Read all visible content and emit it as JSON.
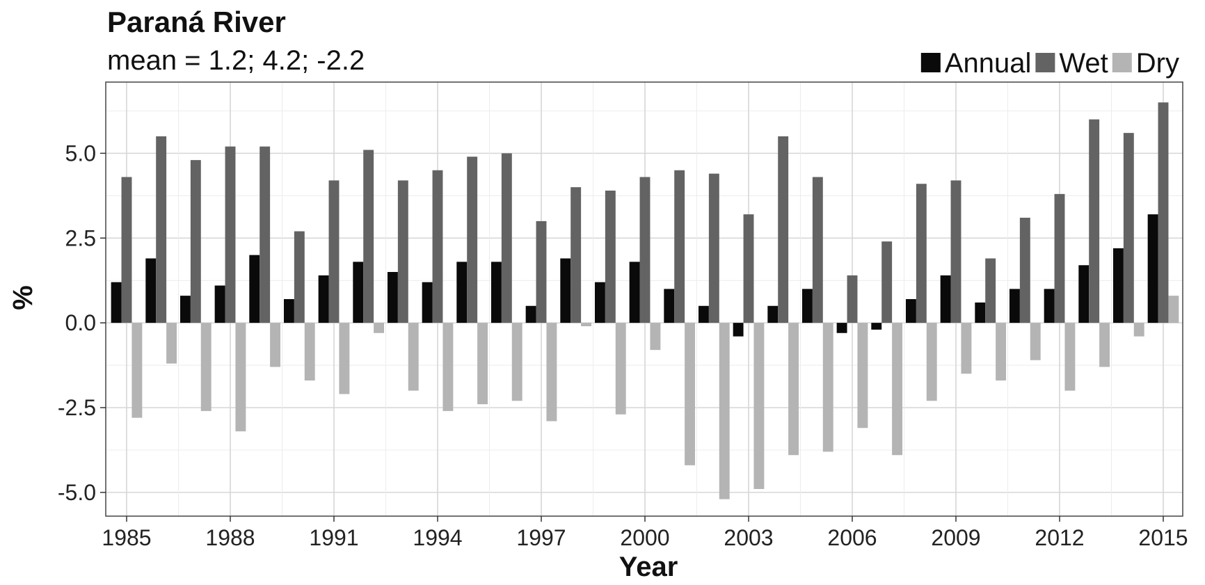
{
  "chart_data": {
    "type": "bar",
    "title": "Paraná River",
    "subtitle": "mean = 1.2; 4.2; -2.2",
    "xlabel": "Year",
    "ylabel": "%",
    "x": [
      1985,
      1986,
      1987,
      1988,
      1989,
      1990,
      1991,
      1992,
      1993,
      1994,
      1995,
      1996,
      1997,
      1998,
      1999,
      2000,
      2001,
      2002,
      2003,
      2004,
      2005,
      2006,
      2007,
      2008,
      2009,
      2010,
      2011,
      2012,
      2013,
      2014,
      2015
    ],
    "xticks": [
      "1985",
      "1988",
      "1991",
      "1994",
      "1997",
      "2000",
      "2003",
      "2006",
      "2009",
      "2012",
      "2015"
    ],
    "yticks": [
      "5.0",
      "2.5",
      "0.0",
      "-2.5",
      "-5.0"
    ],
    "ylim": [
      -5.7,
      7.1
    ],
    "grid": true,
    "legend_position": "top-right",
    "series": [
      {
        "name": "Annual",
        "color": "#0a0a0a",
        "values": [
          1.2,
          1.9,
          0.8,
          1.1,
          2.0,
          0.7,
          1.4,
          1.8,
          1.5,
          1.2,
          1.8,
          1.8,
          0.5,
          1.9,
          1.2,
          1.8,
          1.0,
          0.5,
          -0.4,
          0.5,
          1.0,
          -0.3,
          -0.2,
          0.7,
          1.4,
          0.6,
          1.0,
          1.0,
          1.7,
          2.2,
          3.2
        ]
      },
      {
        "name": "Wet",
        "color": "#636363",
        "values": [
          4.3,
          5.5,
          4.8,
          5.2,
          5.2,
          2.7,
          4.2,
          5.1,
          4.2,
          4.5,
          4.9,
          5.0,
          3.0,
          4.0,
          3.9,
          4.3,
          4.5,
          4.4,
          3.2,
          5.5,
          4.3,
          1.4,
          2.4,
          4.1,
          4.2,
          1.9,
          3.1,
          3.8,
          6.0,
          5.6,
          6.5
        ]
      },
      {
        "name": "Dry",
        "color": "#b4b4b4",
        "values": [
          -2.8,
          -1.2,
          -2.6,
          -3.2,
          -1.3,
          -1.7,
          -2.1,
          -0.3,
          -2.0,
          -2.6,
          -2.4,
          -2.3,
          -2.9,
          -0.1,
          -2.7,
          -0.8,
          -4.2,
          -5.2,
          -4.9,
          -3.9,
          -3.8,
          -3.1,
          -3.9,
          -2.3,
          -1.5,
          -1.7,
          -1.1,
          -2.0,
          -1.3,
          -0.4,
          0.8
        ]
      }
    ]
  }
}
